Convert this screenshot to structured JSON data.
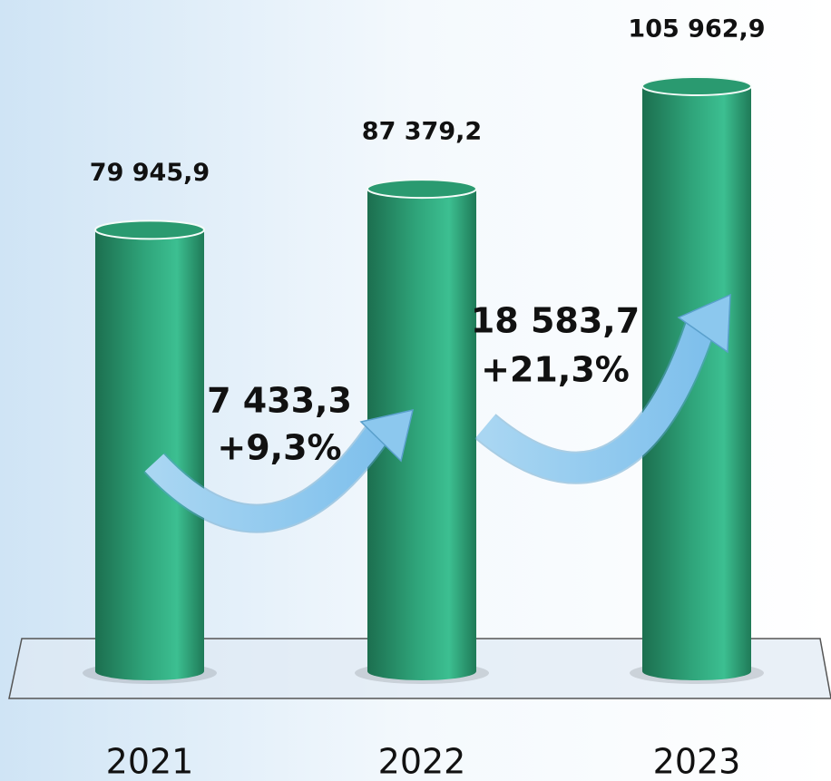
{
  "chart_data": {
    "type": "bar",
    "categories": [
      "2021",
      "2022",
      "2023"
    ],
    "values": [
      79945.9,
      87379.2,
      105962.9
    ],
    "value_labels": [
      "79 945,9",
      "87 379,2",
      "105 962,9"
    ],
    "color": "#2a9a70",
    "annotations": [
      "7 433,3",
      "+9,3%",
      "18 583,7",
      "+21,3%"
    ]
  }
}
